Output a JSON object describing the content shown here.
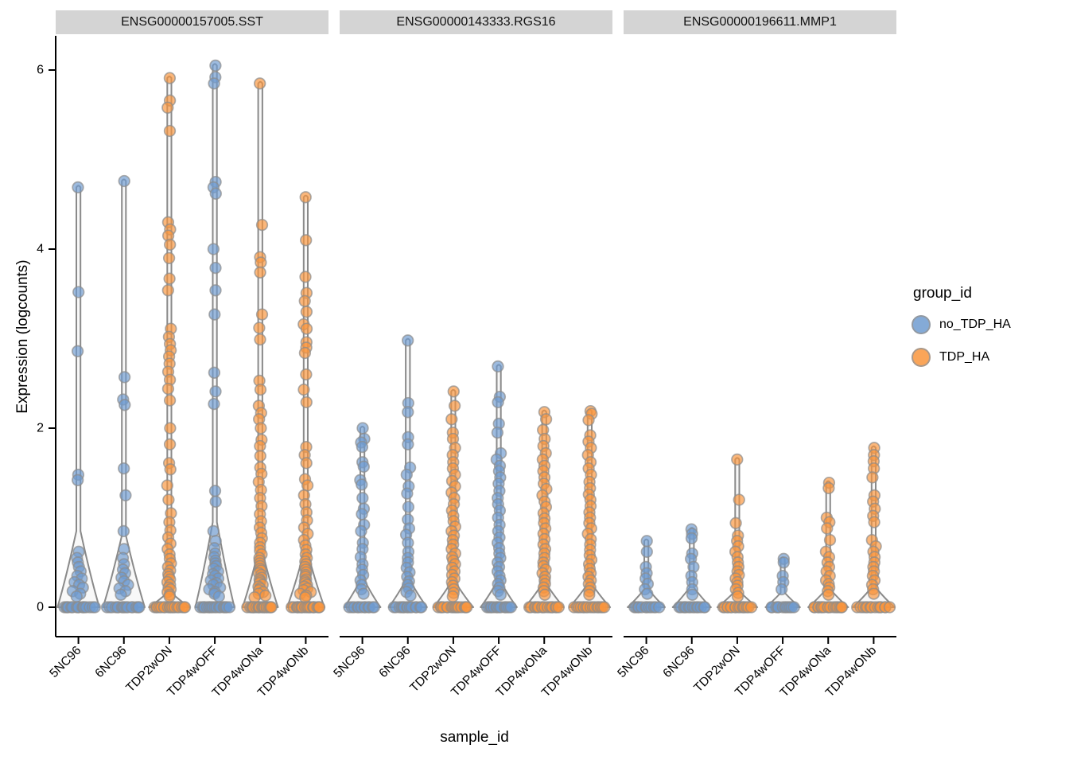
{
  "chart_data": {
    "type": "violin",
    "xlabel": "sample_id",
    "ylabel": "Expression (logcounts)",
    "y_ticks": [
      0,
      2,
      4,
      6
    ],
    "ylim": [
      -0.33,
      6.38
    ],
    "grid": false,
    "legend_position": "right",
    "categories": [
      "5NC96",
      "6NC96",
      "TDP2wON",
      "TDP4wOFF",
      "TDP4wONa",
      "TDP4wONb"
    ],
    "legend": {
      "title": "group_id",
      "entries": [
        {
          "label": "no_TDP_HA",
          "color": "#6E9BD0"
        },
        {
          "label": "TDP_HA",
          "color": "#F9953C"
        }
      ]
    },
    "style": {
      "point_stroke": "#8C8C8C",
      "violin_fill": "#F8F8F8",
      "violin_stroke": "#8A8A8A",
      "strip_bg": "#D4D4D4",
      "axis_color": "#000000"
    },
    "facets": [
      {
        "title": "ENSG00000157005.SST",
        "samples": [
          {
            "id": "5NC96",
            "group": "no_TDP_HA",
            "n_zero": 16,
            "violin": {
              "width": 0.92,
              "shoulder": 0.85
            },
            "values": [
              4.69,
              3.52,
              2.86,
              1.48,
              1.42,
              0.62,
              0.55,
              0.5,
              0.45,
              0.4,
              0.35,
              0.32,
              0.28,
              0.25,
              0.22,
              0.18,
              0.15,
              0.12
            ]
          },
          {
            "id": "6NC96",
            "group": "no_TDP_HA",
            "n_zero": 16,
            "violin": {
              "width": 0.92,
              "shoulder": 0.8
            },
            "values": [
              4.76,
              2.57,
              2.32,
              2.26,
              1.55,
              1.25,
              0.85,
              0.65,
              0.55,
              0.48,
              0.42,
              0.38,
              0.33,
              0.29,
              0.25,
              0.21,
              0.18,
              0.14
            ]
          },
          {
            "id": "TDP2wON",
            "group": "TDP_HA",
            "n_zero": 18,
            "violin": {
              "width": 0.9,
              "shoulder": 0.16
            },
            "values": [
              5.91,
              5.66,
              5.58,
              5.32,
              4.3,
              4.22,
              4.15,
              4.05,
              3.9,
              3.67,
              3.54,
              3.11,
              3.02,
              2.94,
              2.87,
              2.8,
              2.72,
              2.63,
              2.54,
              2.44,
              2.31,
              2.0,
              1.82,
              1.61,
              1.54,
              1.36,
              1.2,
              1.05,
              0.95,
              0.86,
              0.78,
              0.71,
              0.65,
              0.59,
              0.54,
              0.49,
              0.45,
              0.41,
              0.37,
              0.34,
              0.31,
              0.28,
              0.25,
              0.22,
              0.2,
              0.17,
              0.14,
              0.12
            ]
          },
          {
            "id": "TDP4wOFF",
            "group": "no_TDP_HA",
            "n_zero": 18,
            "violin": {
              "width": 0.86,
              "shoulder": 0.95
            },
            "values": [
              6.05,
              5.92,
              5.85,
              4.75,
              4.69,
              4.62,
              4.0,
              3.79,
              3.54,
              3.27,
              2.62,
              2.41,
              2.27,
              1.3,
              1.18,
              0.85,
              0.74,
              0.66,
              0.6,
              0.56,
              0.52,
              0.49,
              0.46,
              0.43,
              0.4,
              0.37,
              0.35,
              0.32,
              0.3,
              0.27,
              0.25,
              0.22,
              0.2,
              0.17,
              0.15,
              0.12
            ]
          },
          {
            "id": "TDP4wONa",
            "group": "TDP_HA",
            "n_zero": 20,
            "violin": {
              "width": 0.78,
              "shoulder": 0.62
            },
            "values": [
              5.85,
              4.27,
              3.91,
              3.85,
              3.74,
              3.27,
              3.12,
              2.99,
              2.53,
              2.43,
              2.25,
              2.17,
              2.1,
              2.0,
              1.87,
              1.8,
              1.69,
              1.56,
              1.49,
              1.4,
              1.31,
              1.22,
              1.13,
              1.04,
              0.96,
              0.89,
              0.83,
              0.77,
              0.72,
              0.67,
              0.63,
              0.59,
              0.55,
              0.52,
              0.49,
              0.46,
              0.43,
              0.41,
              0.38,
              0.36,
              0.33,
              0.31,
              0.29,
              0.27,
              0.25,
              0.23,
              0.21,
              0.19,
              0.17,
              0.15,
              0.13,
              0.11
            ]
          },
          {
            "id": "TDP4wONb",
            "group": "TDP_HA",
            "n_zero": 20,
            "violin": {
              "width": 0.82,
              "shoulder": 0.6
            },
            "values": [
              4.58,
              4.1,
              3.69,
              3.51,
              3.42,
              3.3,
              3.16,
              3.11,
              2.96,
              2.9,
              2.84,
              2.6,
              2.43,
              2.29,
              1.79,
              1.7,
              1.61,
              1.43,
              1.36,
              1.25,
              1.15,
              1.06,
              0.97,
              0.89,
              0.82,
              0.75,
              0.69,
              0.64,
              0.59,
              0.55,
              0.51,
              0.48,
              0.45,
              0.42,
              0.39,
              0.36,
              0.34,
              0.31,
              0.29,
              0.27,
              0.25,
              0.23,
              0.21,
              0.19,
              0.17,
              0.15,
              0.13,
              0.11
            ]
          }
        ]
      },
      {
        "title": "ENSG00000143333.RGS16",
        "samples": [
          {
            "id": "5NC96",
            "group": "no_TDP_HA",
            "n_zero": 12,
            "violin": {
              "width": 0.8,
              "shoulder": 0.3
            },
            "values": [
              2.0,
              1.88,
              1.84,
              1.79,
              1.62,
              1.57,
              1.42,
              1.37,
              1.22,
              1.1,
              1.04,
              0.92,
              0.85,
              0.72,
              0.65,
              0.56,
              0.48,
              0.42,
              0.36,
              0.3,
              0.25,
              0.2,
              0.15
            ]
          },
          {
            "id": "6NC96",
            "group": "no_TDP_HA",
            "n_zero": 14,
            "violin": {
              "width": 0.84,
              "shoulder": 0.3
            },
            "values": [
              2.98,
              2.28,
              2.18,
              1.9,
              1.82,
              1.56,
              1.48,
              1.35,
              1.27,
              1.12,
              0.98,
              0.88,
              0.81,
              0.72,
              0.62,
              0.55,
              0.5,
              0.44,
              0.39,
              0.34,
              0.29,
              0.25,
              0.21,
              0.17,
              0.13
            ]
          },
          {
            "id": "TDP2wON",
            "group": "TDP_HA",
            "n_zero": 16,
            "violin": {
              "width": 0.88,
              "shoulder": 0.28
            },
            "values": [
              2.41,
              2.25,
              2.1,
              1.95,
              1.88,
              1.78,
              1.7,
              1.62,
              1.55,
              1.48,
              1.41,
              1.35,
              1.28,
              1.22,
              1.15,
              1.08,
              1.02,
              0.96,
              0.9,
              0.85,
              0.8,
              0.75,
              0.7,
              0.65,
              0.6,
              0.56,
              0.52,
              0.48,
              0.44,
              0.4,
              0.36,
              0.32,
              0.28,
              0.24,
              0.2,
              0.16,
              0.12
            ]
          },
          {
            "id": "TDP4wOFF",
            "group": "no_TDP_HA",
            "n_zero": 14,
            "violin": {
              "width": 0.8,
              "shoulder": 0.28
            },
            "values": [
              2.69,
              2.35,
              2.29,
              2.05,
              1.95,
              1.72,
              1.65,
              1.58,
              1.52,
              1.45,
              1.38,
              1.3,
              1.22,
              1.15,
              1.08,
              1.0,
              0.92,
              0.85,
              0.78,
              0.72,
              0.66,
              0.6,
              0.55,
              0.5,
              0.45,
              0.4,
              0.35,
              0.3,
              0.26,
              0.22,
              0.18,
              0.14
            ]
          },
          {
            "id": "TDP4wONa",
            "group": "TDP_HA",
            "n_zero": 16,
            "violin": {
              "width": 0.86,
              "shoulder": 0.26
            },
            "values": [
              2.18,
              2.1,
              1.98,
              1.88,
              1.8,
              1.72,
              1.65,
              1.58,
              1.52,
              1.45,
              1.38,
              1.32,
              1.25,
              1.18,
              1.12,
              1.05,
              0.99,
              0.94,
              0.88,
              0.82,
              0.76,
              0.7,
              0.65,
              0.6,
              0.55,
              0.5,
              0.46,
              0.42,
              0.38,
              0.34,
              0.3,
              0.26,
              0.22,
              0.18,
              0.14
            ]
          },
          {
            "id": "TDP4wONb",
            "group": "TDP_HA",
            "n_zero": 16,
            "violin": {
              "width": 0.9,
              "shoulder": 0.26
            },
            "values": [
              2.19,
              2.16,
              2.09,
              1.92,
              1.85,
              1.78,
              1.7,
              1.62,
              1.55,
              1.48,
              1.4,
              1.33,
              1.26,
              1.2,
              1.13,
              1.06,
              1.0,
              0.94,
              0.88,
              0.82,
              0.76,
              0.7,
              0.64,
              0.58,
              0.53,
              0.48,
              0.43,
              0.38,
              0.34,
              0.3,
              0.26,
              0.22,
              0.18,
              0.14
            ]
          }
        ]
      },
      {
        "title": "ENSG00000196611.MMP1",
        "samples": [
          {
            "id": "5NC96",
            "group": "no_TDP_HA",
            "n_zero": 12,
            "violin": {
              "width": 0.82,
              "shoulder": 0.2
            },
            "values": [
              0.74,
              0.62,
              0.45,
              0.38,
              0.32,
              0.26,
              0.2,
              0.15
            ]
          },
          {
            "id": "6NC96",
            "group": "no_TDP_HA",
            "n_zero": 14,
            "violin": {
              "width": 0.84,
              "shoulder": 0.22
            },
            "values": [
              0.87,
              0.82,
              0.77,
              0.6,
              0.54,
              0.45,
              0.35,
              0.28,
              0.2,
              0.14
            ]
          },
          {
            "id": "TDP2wON",
            "group": "TDP_HA",
            "n_zero": 16,
            "violin": {
              "width": 0.88,
              "shoulder": 0.18
            },
            "values": [
              1.65,
              1.2,
              0.94,
              0.8,
              0.74,
              0.68,
              0.62,
              0.56,
              0.5,
              0.45,
              0.4,
              0.36,
              0.32,
              0.28,
              0.24,
              0.2,
              0.16,
              0.12
            ]
          },
          {
            "id": "TDP4wOFF",
            "group": "no_TDP_HA",
            "n_zero": 12,
            "violin": {
              "width": 0.76,
              "shoulder": 0.16
            },
            "values": [
              0.54,
              0.5,
              0.35,
              0.28,
              0.2
            ]
          },
          {
            "id": "TDP4wONa",
            "group": "TDP_HA",
            "n_zero": 16,
            "violin": {
              "width": 0.88,
              "shoulder": 0.2
            },
            "values": [
              1.39,
              1.33,
              1.0,
              0.95,
              0.88,
              0.75,
              0.62,
              0.56,
              0.5,
              0.45,
              0.4,
              0.35,
              0.3,
              0.26,
              0.22,
              0.18,
              0.14
            ]
          },
          {
            "id": "TDP4wONb",
            "group": "TDP_HA",
            "n_zero": 14,
            "violin": {
              "width": 0.92,
              "shoulder": 0.22
            },
            "values": [
              1.78,
              1.7,
              1.63,
              1.55,
              1.45,
              1.25,
              1.18,
              1.1,
              1.02,
              0.95,
              0.75,
              0.68,
              0.62,
              0.56,
              0.5,
              0.45,
              0.4,
              0.35,
              0.3,
              0.25,
              0.2,
              0.15
            ]
          }
        ]
      }
    ]
  }
}
